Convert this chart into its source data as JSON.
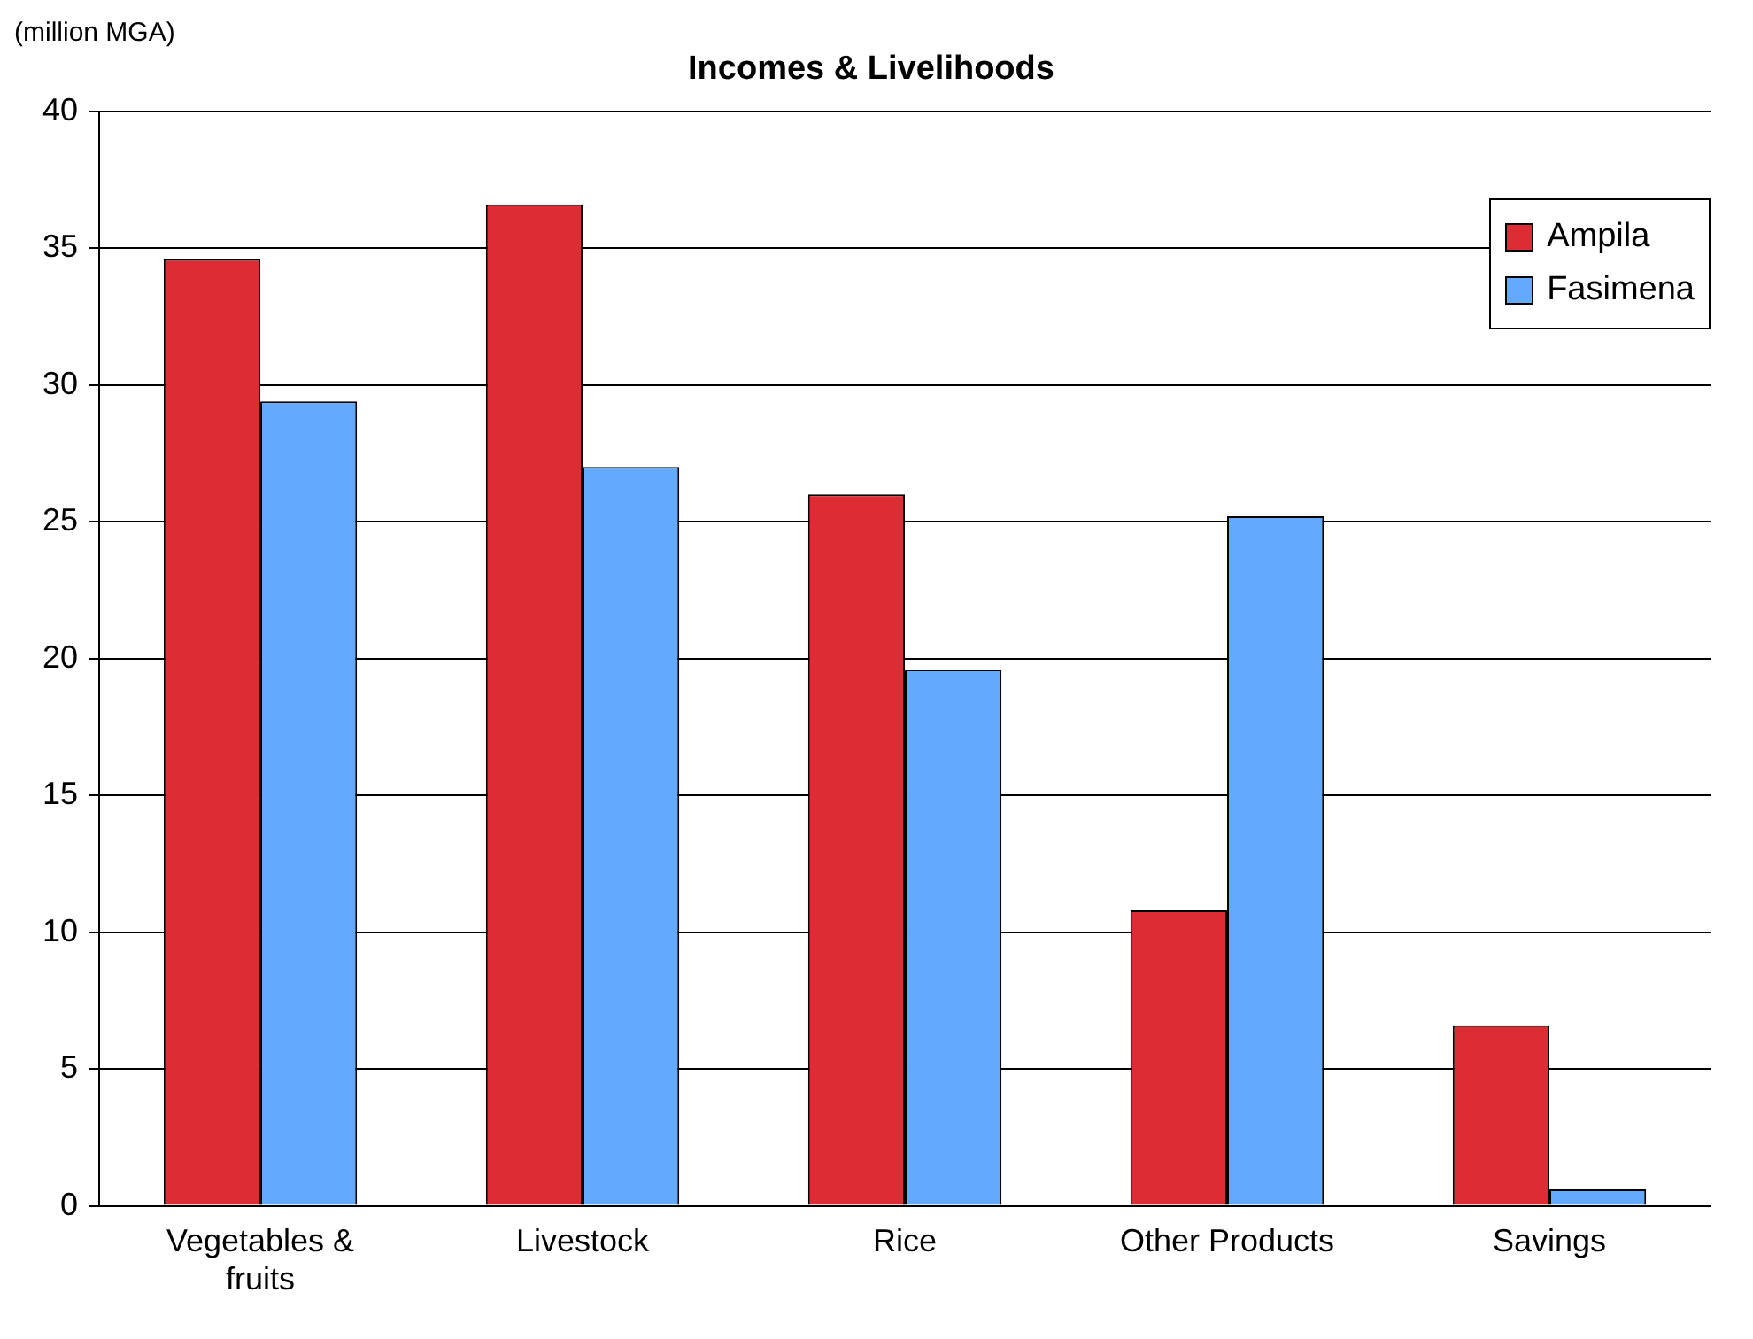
{
  "chart_data": {
    "type": "bar",
    "title": "Incomes & Livelihoods",
    "ylabel": "(million MGA)",
    "categories": [
      "Vegetables & fruits",
      "Livestock",
      "Rice",
      "Other Products",
      "Savings"
    ],
    "series": [
      {
        "name": "Ampila",
        "color": "#dc2c34",
        "values": [
          34.6,
          36.6,
          26.0,
          10.8,
          6.6
        ]
      },
      {
        "name": "Fasimena",
        "color": "#63a9fd",
        "values": [
          29.4,
          27.0,
          19.6,
          25.2,
          0.6
        ]
      }
    ],
    "ylim": [
      0,
      40
    ],
    "yticks": [
      0,
      5,
      10,
      15,
      20,
      25,
      30,
      35,
      40
    ],
    "grid": "y",
    "legend": "top right"
  }
}
